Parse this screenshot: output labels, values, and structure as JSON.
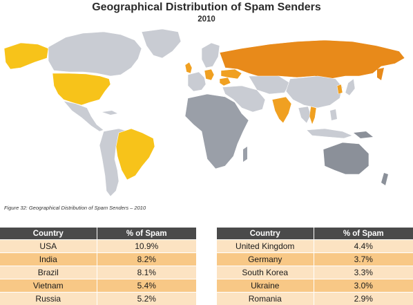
{
  "header": {
    "title": "Geographical Distribution of Spam Senders",
    "subtitle": "2010"
  },
  "caption": "Figure 32: Geographical Distribution of Spam Senders – 2010",
  "colors": {
    "land_default": "#c9ccd3",
    "land_africa": "#9a9fa8",
    "land_oceania": "#8b9099",
    "highlight_yellow": "#f7c31a",
    "highlight_orange": "#f0a021",
    "highlight_dark_orange": "#e88a1a",
    "table_header": "#4a4a4a",
    "row_light": "#fce3c2",
    "row_dark": "#f8c886"
  },
  "map": {
    "highlighted_countries": [
      "USA",
      "India",
      "Brazil",
      "Vietnam",
      "Russia",
      "United Kingdom",
      "Germany",
      "South Korea",
      "Ukraine",
      "Romania"
    ]
  },
  "table": {
    "col_country": "Country",
    "col_percent": "% of Spam",
    "left_rows": [
      {
        "country": "USA",
        "percent": "10.9%"
      },
      {
        "country": "India",
        "percent": "8.2%"
      },
      {
        "country": "Brazil",
        "percent": "8.1%"
      },
      {
        "country": "Vietnam",
        "percent": "5.4%"
      },
      {
        "country": "Russia",
        "percent": "5.2%"
      }
    ],
    "right_rows": [
      {
        "country": "United Kingdom",
        "percent": "4.4%"
      },
      {
        "country": "Germany",
        "percent": "3.7%"
      },
      {
        "country": "South Korea",
        "percent": "3.3%"
      },
      {
        "country": "Ukraine",
        "percent": "3.0%"
      },
      {
        "country": "Romania",
        "percent": "2.9%"
      }
    ]
  }
}
